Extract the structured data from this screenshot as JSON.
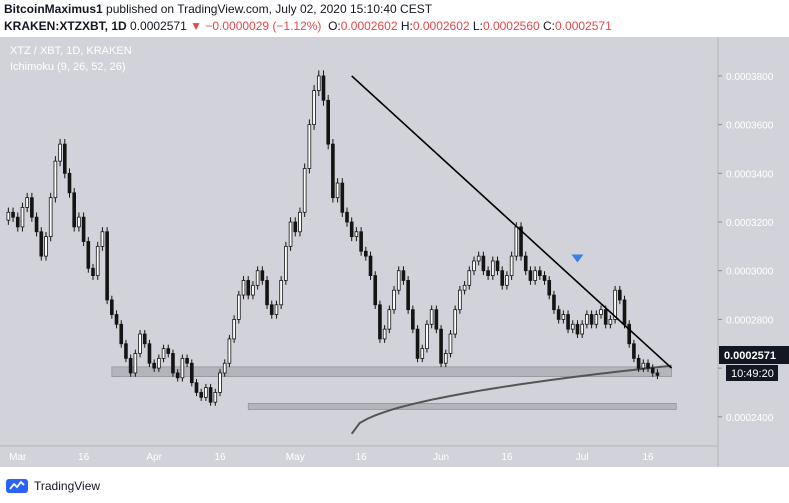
{
  "header": {
    "author": "BitcoinMaximus1",
    "published": "published on TradingView.com, July 02, 2020 15:10:40 CEST",
    "symbol": "KRAKEN:XTZXBT, 1D",
    "last": "0.0002571",
    "change": "−0.0000029 (−1.12%)",
    "o_label": "O:",
    "o_value": "0.0002602",
    "h_label": "H:",
    "h_value": "0.0002602",
    "l_label": "L:",
    "l_value": "0.0002560",
    "c_label": "C:",
    "c_value": "0.0002571"
  },
  "chart_legend": {
    "pair": "XTZ / XBT, 1D, KRAKEN",
    "indicator": "Ichimoku (9, 26, 52, 26)"
  },
  "price_tag": "0.0002571",
  "countdown": "10:49:20",
  "footer": {
    "brand": "TradingView"
  },
  "colors": {
    "background": "#d2d3da",
    "candle": "#141414",
    "price_tag_bg": "#131722",
    "zone": "#a9aab1",
    "arrow": "#3b7fe0"
  },
  "chart_data": {
    "type": "candlestick",
    "y_ticks": [
      "0.0002400",
      "0.0002600",
      "0.0002800",
      "0.0003000",
      "0.0003200",
      "0.0003400",
      "0.0003600",
      "0.0003800"
    ],
    "x_ticks": [
      "Mar",
      "16",
      "Apr",
      "16",
      "May",
      "16",
      "Jun",
      "16",
      "Jul",
      "16"
    ],
    "ylim": [
      0.000228,
      0.000396
    ],
    "close_series": [
      0.000324,
      0.000322,
      0.000318,
      0.000326,
      0.00033,
      0.000322,
      0.000316,
      0.000306,
      0.000314,
      0.00033,
      0.000345,
      0.000352,
      0.00034,
      0.000332,
      0.000318,
      0.000322,
      0.000312,
      0.000301,
      0.000298,
      0.00031,
      0.000316,
      0.000288,
      0.000282,
      0.000278,
      0.00027,
      0.000264,
      0.000258,
      0.000266,
      0.000274,
      0.00027,
      0.000262,
      0.00026,
      0.000264,
      0.000268,
      0.000266,
      0.000258,
      0.000256,
      0.000264,
      0.000262,
      0.000254,
      0.00025,
      0.000248,
      0.000252,
      0.000246,
      0.00025,
      0.000258,
      0.000262,
      0.000272,
      0.00028,
      0.00029,
      0.000296,
      0.00029,
      0.000294,
      0.0003,
      0.000296,
      0.000286,
      0.000282,
      0.000286,
      0.000296,
      0.00031,
      0.00032,
      0.000316,
      0.000324,
      0.000342,
      0.00036,
      0.000374,
      0.00038,
      0.00037,
      0.000352,
      0.00033,
      0.000336,
      0.000324,
      0.00032,
      0.000314,
      0.000316,
      0.000308,
      0.000306,
      0.000298,
      0.000286,
      0.000272,
      0.000276,
      0.000284,
      0.000292,
      0.0003,
      0.000296,
      0.000284,
      0.000276,
      0.000264,
      0.000268,
      0.000278,
      0.000284,
      0.000276,
      0.000262,
      0.000266,
      0.000274,
      0.000284,
      0.000292,
      0.000294,
      0.0003,
      0.000304,
      0.000306,
      0.0003,
      0.000298,
      0.000304,
      0.0003,
      0.000294,
      0.000298,
      0.000306,
      0.000318,
      0.000306,
      0.0003,
      0.000296,
      0.0003,
      0.000298,
      0.000296,
      0.00029,
      0.000284,
      0.00028,
      0.000282,
      0.000276,
      0.000278,
      0.000274,
      0.000278,
      0.000282,
      0.000278,
      0.000282,
      0.000284,
      0.000278,
      0.00028,
      0.000292,
      0.000288,
      0.000278,
      0.00027,
      0.000264,
      0.00026,
      0.000262,
      0.00026,
      0.000258,
      0.000257
    ],
    "moving_average": {
      "start_index": 73,
      "end_index": 141,
      "start": 0.000233,
      "end": 0.000261
    },
    "support_zones": [
      {
        "from_index": 22,
        "to_index": 141,
        "low": 0.0002565,
        "high": 0.0002605
      },
      {
        "from_index": 51,
        "to_index": 142,
        "low": 0.000243,
        "high": 0.0002455
      }
    ],
    "trendline": {
      "from_index": 73,
      "from_value": 0.00038,
      "to_index": 141,
      "to_value": 0.00026
    }
  }
}
